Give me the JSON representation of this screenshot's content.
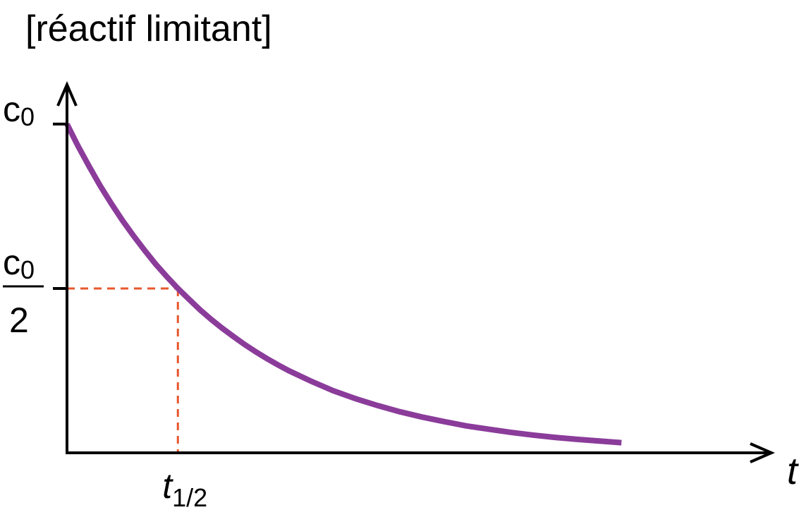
{
  "chart_data": {
    "type": "line",
    "title": "[réactif limitant]",
    "xlabel": "t",
    "ylabel": "",
    "x": [
      0,
      0.1,
      0.2,
      0.3,
      0.4,
      0.5,
      0.6,
      0.7,
      0.8,
      0.9,
      1.0,
      1.1,
      1.2,
      1.3,
      1.4,
      1.5,
      1.6,
      1.7,
      1.8,
      1.9,
      2.0,
      2.2,
      2.4,
      2.6,
      2.8,
      3.0,
      3.2,
      3.4,
      3.6,
      3.8,
      4.0,
      4.2,
      4.4,
      4.6,
      4.8,
      5.0
    ],
    "series": [
      {
        "values": [
          1.0,
          0.933,
          0.871,
          0.812,
          0.758,
          0.707,
          0.66,
          0.616,
          0.574,
          0.536,
          0.5,
          0.467,
          0.435,
          0.406,
          0.379,
          0.354,
          0.33,
          0.308,
          0.287,
          0.268,
          0.25,
          0.218,
          0.189,
          0.165,
          0.144,
          0.125,
          0.109,
          0.095,
          0.082,
          0.072,
          0.0625,
          0.054,
          0.047,
          0.041,
          0.036,
          0.031
        ]
      }
    ],
    "xlim": [
      0,
      6.2
    ],
    "ylim": [
      0,
      1.12
    ],
    "y_ticks": [
      {
        "value": 1.0,
        "label": "c",
        "subscript": "0"
      },
      {
        "value": 0.5,
        "label_numerator": "c",
        "numerator_subscript": "0",
        "label_denominator": "2"
      }
    ],
    "x_ticks": [
      {
        "value": 1.0,
        "label": "t",
        "subscript": "1/2"
      }
    ],
    "annotations": [
      {
        "type": "dashed-guide",
        "x": 1.0,
        "y": 0.5
      }
    ],
    "grid": false,
    "colors": {
      "curve": "#8B3C9A",
      "guide": "#E8572E",
      "axis": "#000000"
    }
  }
}
